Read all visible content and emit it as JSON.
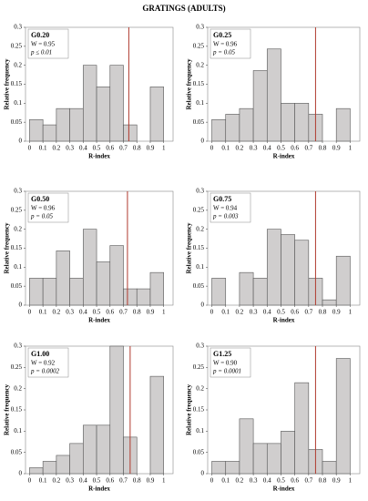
{
  "title": "GRATINGS (ADULTS)",
  "chart_data": [
    {
      "type": "histogram",
      "name": "G0.20",
      "stats": [
        "W = 0.95",
        "p ≤ 0.01"
      ],
      "xlabel": "R-index",
      "ylabel": "Relative frequency",
      "bins": [
        0,
        0.1,
        0.2,
        0.3,
        0.4,
        0.5,
        0.6,
        0.7,
        0.8,
        0.9,
        1.0
      ],
      "values": [
        0.057,
        0.043,
        0.086,
        0.086,
        0.2,
        0.143,
        0.2,
        0.043,
        0,
        0.143
      ],
      "vline": 0.74,
      "color": "#d0cece",
      "line_color": "#b03a2e",
      "xlim": [
        -0.03,
        1.07
      ],
      "xticks": [
        0,
        0.1,
        0.2,
        0.3,
        0.4,
        0.5,
        0.6,
        0.7,
        0.8,
        0.9,
        1
      ],
      "ylim": [
        0,
        0.3
      ],
      "yticks": [
        0,
        0.05,
        0.1,
        0.15,
        0.2,
        0.25,
        0.3
      ]
    },
    {
      "type": "histogram",
      "name": "G0.25",
      "stats": [
        "W = 0.96",
        "p = 0.05"
      ],
      "xlabel": "R-index",
      "ylabel": "Relative frequency",
      "bins": [
        0,
        0.1,
        0.2,
        0.3,
        0.4,
        0.5,
        0.6,
        0.7,
        0.8,
        0.9,
        1.0
      ],
      "values": [
        0.057,
        0.071,
        0.086,
        0.186,
        0.243,
        0.1,
        0.1,
        0.071,
        0,
        0.086
      ],
      "vline": 0.75,
      "color": "#d0cece",
      "line_color": "#b03a2e",
      "xlim": [
        -0.03,
        1.07
      ],
      "xticks": [
        0,
        0.1,
        0.2,
        0.3,
        0.4,
        0.5,
        0.6,
        0.7,
        0.8,
        0.9,
        1
      ],
      "ylim": [
        0,
        0.3
      ],
      "yticks": [
        0,
        0.05,
        0.1,
        0.15,
        0.2,
        0.25,
        0.3
      ]
    },
    {
      "type": "histogram",
      "name": "G0.50",
      "stats": [
        "W = 0.96",
        "p = 0.05"
      ],
      "xlabel": "R-index",
      "ylabel": "Relative frequency",
      "bins": [
        0,
        0.1,
        0.2,
        0.3,
        0.4,
        0.5,
        0.6,
        0.7,
        0.8,
        0.9,
        1.0
      ],
      "values": [
        0.071,
        0.071,
        0.143,
        0.071,
        0.2,
        0.114,
        0.157,
        0.043,
        0.043,
        0.086
      ],
      "vline": 0.73,
      "color": "#d0cece",
      "line_color": "#b03a2e",
      "xlim": [
        -0.03,
        1.07
      ],
      "xticks": [
        0,
        0.1,
        0.2,
        0.3,
        0.4,
        0.5,
        0.6,
        0.7,
        0.8,
        0.9,
        1
      ],
      "ylim": [
        0,
        0.3
      ],
      "yticks": [
        0,
        0.05,
        0.1,
        0.15,
        0.2,
        0.25,
        0.3
      ]
    },
    {
      "type": "histogram",
      "name": "G0.75",
      "stats": [
        "W = 0.94",
        "p = 0.003"
      ],
      "xlabel": "R-index",
      "ylabel": "Relative frequency",
      "bins": [
        0,
        0.1,
        0.2,
        0.3,
        0.4,
        0.5,
        0.6,
        0.7,
        0.8,
        0.9,
        1.0
      ],
      "values": [
        0.071,
        0,
        0.086,
        0.071,
        0.2,
        0.186,
        0.171,
        0.071,
        0.014,
        0.129
      ],
      "vline": 0.75,
      "color": "#d0cece",
      "line_color": "#b03a2e",
      "xlim": [
        -0.03,
        1.07
      ],
      "xticks": [
        0,
        0.1,
        0.2,
        0.3,
        0.4,
        0.5,
        0.6,
        0.7,
        0.8,
        0.9,
        1
      ],
      "ylim": [
        0,
        0.3
      ],
      "yticks": [
        0,
        0.05,
        0.1,
        0.15,
        0.2,
        0.25,
        0.3
      ]
    },
    {
      "type": "histogram",
      "name": "G1.00",
      "stats": [
        "W = 0.92",
        "p = 0.0002"
      ],
      "xlabel": "R-index",
      "ylabel": "Relative frequency",
      "bins": [
        0,
        0.1,
        0.2,
        0.3,
        0.4,
        0.5,
        0.6,
        0.7,
        0.8,
        0.9,
        1.0
      ],
      "values": [
        0.014,
        0.029,
        0.043,
        0.071,
        0.114,
        0.114,
        0.3,
        0.086,
        0,
        0.229
      ],
      "vline": 0.75,
      "color": "#d0cece",
      "line_color": "#b03a2e",
      "xlim": [
        -0.03,
        1.07
      ],
      "xticks": [
        0,
        0.1,
        0.2,
        0.3,
        0.4,
        0.5,
        0.6,
        0.7,
        0.8,
        0.9,
        1
      ],
      "ylim": [
        0,
        0.3
      ],
      "yticks": [
        0,
        0.05,
        0.1,
        0.15,
        0.2,
        0.25,
        0.3
      ]
    },
    {
      "type": "histogram",
      "name": "G1.25",
      "stats": [
        "W = 0.90",
        "p = 0.0001"
      ],
      "xlabel": "R-index",
      "ylabel": "Relative frequency",
      "bins": [
        0,
        0.1,
        0.2,
        0.3,
        0.4,
        0.5,
        0.6,
        0.7,
        0.8,
        0.9,
        1.0
      ],
      "values": [
        0.029,
        0.029,
        0.129,
        0.071,
        0.071,
        0.1,
        0.214,
        0.057,
        0.029,
        0.271
      ],
      "vline": 0.75,
      "color": "#d0cece",
      "line_color": "#b03a2e",
      "xlim": [
        -0.03,
        1.07
      ],
      "xticks": [
        0,
        0.1,
        0.2,
        0.3,
        0.4,
        0.5,
        0.6,
        0.7,
        0.8,
        0.9,
        1
      ],
      "ylim": [
        0,
        0.3
      ],
      "yticks": [
        0,
        0.05,
        0.1,
        0.15,
        0.2,
        0.25,
        0.3
      ]
    }
  ]
}
